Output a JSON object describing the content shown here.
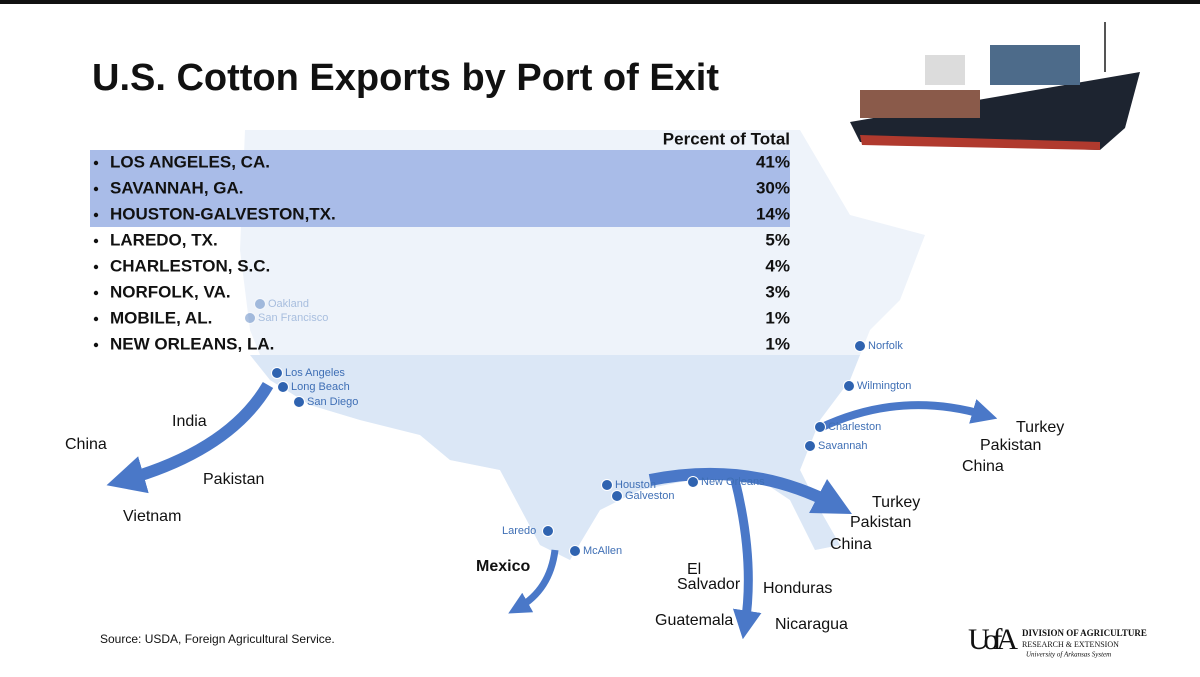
{
  "title": "U.S. Cotton Exports by Port of Exit",
  "table": {
    "header": "Percent of Total",
    "rows": [
      [
        "LOS ANGELES, CA.",
        "41%"
      ],
      [
        "SAVANNAH, GA.",
        "30%"
      ],
      [
        "HOUSTON-GALVESTON,TX.",
        "14%"
      ],
      [
        "LAREDO, TX.",
        "5%"
      ],
      [
        "CHARLESTON, S.C.",
        "4%"
      ],
      [
        "NORFOLK, VA.",
        "3%"
      ],
      [
        "MOBILE, AL.",
        "1%"
      ],
      [
        "NEW ORLEANS, LA.",
        "1%"
      ]
    ]
  },
  "map": {
    "ports": [
      "Oakland",
      "San Francisco",
      "Los Angeles",
      "Long Beach",
      "San Diego",
      "Norfolk",
      "Wilmington",
      "Charleston",
      "Savannah",
      "Houston",
      "Galveston",
      "New Orleans",
      "Laredo",
      "McAllen"
    ],
    "destinations": [
      "India",
      "China",
      "Pakistan",
      "Vietnam",
      "Turkey",
      "Pakistan",
      "China",
      "Turkey",
      "Pakistan",
      "China",
      "Mexico",
      "El",
      "Salvador",
      "Honduras",
      "Guatemala",
      "Nicaragua"
    ]
  },
  "source": "Source:  USDA, Foreign Agricultural Service.",
  "logo": {
    "mark": "UofA",
    "lines": [
      "DIVISION OF AGRICULTURE",
      "RESEARCH & EXTENSION",
      "University of Arkansas System"
    ]
  }
}
